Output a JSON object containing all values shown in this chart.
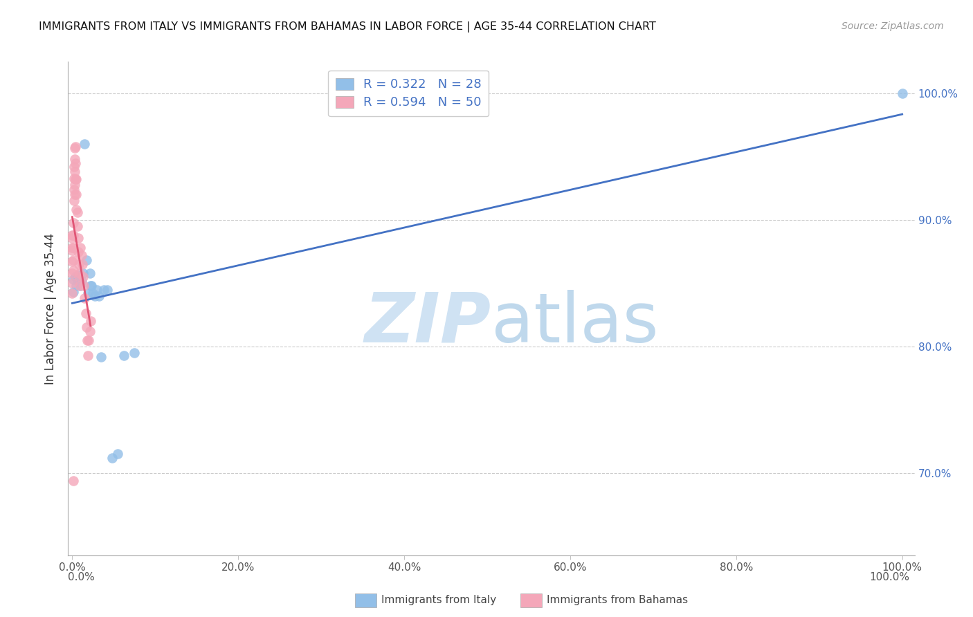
{
  "title": "IMMIGRANTS FROM ITALY VS IMMIGRANTS FROM BAHAMAS IN LABOR FORCE | AGE 35-44 CORRELATION CHART",
  "source": "Source: ZipAtlas.com",
  "ylabel": "In Labor Force | Age 35-44",
  "italy_color": "#92bfe8",
  "bahamas_color": "#f4a7b9",
  "italy_line_color": "#4472c4",
  "bahamas_line_color": "#e05575",
  "italy_R": "0.322",
  "italy_N": "28",
  "bahamas_R": "0.594",
  "bahamas_N": "50",
  "ylim_low": 0.635,
  "ylim_high": 1.025,
  "xlim_low": -0.005,
  "xlim_high": 1.015,
  "italy_x": [
    0.001,
    0.001,
    0.004,
    0.005,
    0.006,
    0.007,
    0.009,
    0.01,
    0.011,
    0.013,
    0.015,
    0.017,
    0.019,
    0.021,
    0.022,
    0.023,
    0.025,
    0.027,
    0.03,
    0.032,
    0.035,
    0.038,
    0.042,
    0.048,
    0.055,
    0.062,
    0.075,
    1.0
  ],
  "italy_y": [
    0.853,
    0.843,
    0.855,
    0.848,
    0.853,
    0.856,
    0.85,
    0.848,
    0.852,
    0.858,
    0.96,
    0.868,
    0.842,
    0.858,
    0.848,
    0.848,
    0.842,
    0.84,
    0.845,
    0.84,
    0.792,
    0.845,
    0.845,
    0.712,
    0.715,
    0.793,
    0.795,
    1.0
  ],
  "bahamas_x": [
    0.0,
    0.0,
    0.0,
    0.0,
    0.0,
    0.0,
    0.0,
    0.0,
    0.001,
    0.001,
    0.001,
    0.001,
    0.001,
    0.002,
    0.002,
    0.002,
    0.002,
    0.003,
    0.003,
    0.003,
    0.003,
    0.003,
    0.004,
    0.004,
    0.004,
    0.005,
    0.005,
    0.005,
    0.006,
    0.006,
    0.007,
    0.007,
    0.008,
    0.008,
    0.009,
    0.009,
    0.01,
    0.011,
    0.012,
    0.013,
    0.014,
    0.015,
    0.016,
    0.017,
    0.018,
    0.019,
    0.02,
    0.021,
    0.022,
    0.001
  ],
  "bahamas_y": [
    0.886,
    0.876,
    0.867,
    0.858,
    0.85,
    0.842,
    0.888,
    0.878,
    0.898,
    0.888,
    0.878,
    0.868,
    0.86,
    0.942,
    0.933,
    0.924,
    0.915,
    0.957,
    0.948,
    0.938,
    0.928,
    0.92,
    0.958,
    0.945,
    0.932,
    0.932,
    0.92,
    0.908,
    0.906,
    0.895,
    0.886,
    0.875,
    0.865,
    0.855,
    0.858,
    0.848,
    0.878,
    0.872,
    0.865,
    0.855,
    0.848,
    0.838,
    0.826,
    0.815,
    0.805,
    0.793,
    0.805,
    0.812,
    0.82,
    0.694
  ],
  "xtick_positions": [
    0.0,
    0.2,
    0.4,
    0.6,
    0.8,
    1.0
  ],
  "xtick_labels": [
    "0.0%",
    "20.0%",
    "40.0%",
    "60.0%",
    "80.0%",
    "100.0%"
  ],
  "ytick_positions": [
    0.7,
    0.8,
    0.9,
    1.0
  ],
  "ytick_labels": [
    "70.0%",
    "80.0%",
    "90.0%",
    "100.0%"
  ]
}
